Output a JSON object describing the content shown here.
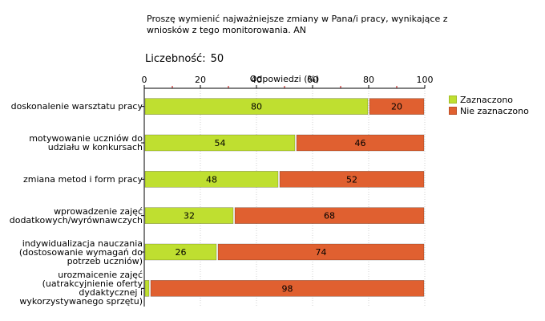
{
  "header": {
    "title": "Proszę wymienić najważniejsze zmiany w Pana/i pracy, wynikające z wniosków z tego monitorowania. AN",
    "count_label": "Liczebność:",
    "count_value": "50"
  },
  "chart_data": {
    "type": "bar",
    "orientation": "horizontal",
    "stacked": true,
    "xlabel": "Odpowiedzi (%)",
    "xlim": [
      0,
      100
    ],
    "xticks": [
      "0",
      "20",
      "40",
      "60",
      "80",
      "100"
    ],
    "categories": [
      "doskonalenie warsztatu pracy",
      "motywowanie uczniów do udziału w konkursach",
      "zmiana metod i form pracy",
      "wprowadzenie zajęć dodatkowych/wyrównawczych",
      "indywidualizacja nauczania (dostosowanie wymagań do potrzeb uczniów)",
      "urozmaicenie zajęć (uatrakcyjnienie oferty dydaktycznej i wykorzystywanego sprzętu)"
    ],
    "series": [
      {
        "name": "Zaznaczono",
        "color": "#bfdf30",
        "values": [
          80,
          54,
          48,
          32,
          26,
          2
        ],
        "labels": [
          "80",
          "54",
          "48",
          "32",
          "26",
          ""
        ]
      },
      {
        "name": "Nie zaznaczono",
        "color": "#e06030",
        "values": [
          20,
          46,
          52,
          68,
          74,
          98
        ],
        "labels": [
          "20",
          "46",
          "52",
          "68",
          "74",
          "98"
        ]
      }
    ],
    "grid": true,
    "legend": "right"
  }
}
